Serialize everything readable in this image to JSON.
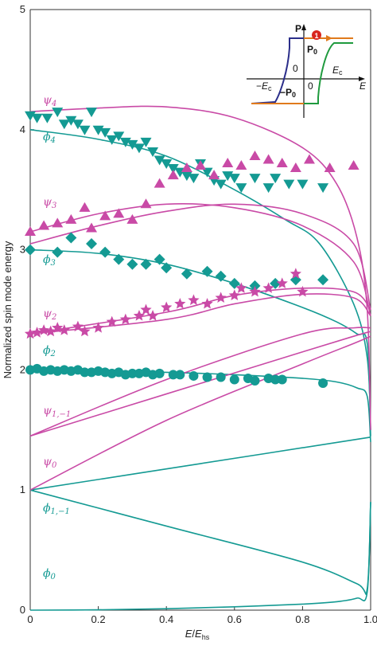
{
  "chart_data": {
    "type": "line",
    "xlabel": "E/E_hs",
    "ylabel": "Normalized spin mode energy",
    "xlim": [
      0,
      1.0
    ],
    "ylim": [
      0,
      5
    ],
    "x_ticks": [
      "0",
      "0.2",
      "0.4",
      "0.6",
      "0.8",
      "1.0"
    ],
    "y_ticks": [
      "0",
      "1",
      "2",
      "3",
      "4",
      "5"
    ],
    "grid": false,
    "colors": {
      "phi": "#149a93",
      "psi": "#c94aa6",
      "axis": "#333333"
    },
    "mode_labels": {
      "psi_4": "ψ4",
      "phi_4": "φ4",
      "psi_3": "ψ3",
      "phi_3": "φ3",
      "psi_2": "ψ2",
      "phi_2": "φ2",
      "psi_1m1": "ψ1,−1",
      "psi_0": "ψ0",
      "phi_1m1": "φ1,−1",
      "phi_0": "φ0"
    },
    "curves": [
      {
        "family": "phi",
        "mode": "phi_0",
        "points": [
          [
            0,
            0
          ],
          [
            0.2,
            0.003
          ],
          [
            0.4,
            0.012
          ],
          [
            0.6,
            0.028
          ],
          [
            0.8,
            0.05
          ],
          [
            0.9,
            0.07
          ],
          [
            0.96,
            0.1
          ],
          [
            0.99,
            0.15
          ],
          [
            1.0,
            0.9
          ]
        ]
      },
      {
        "family": "phi",
        "mode": "phi_1m1_upper",
        "points": [
          [
            0,
            1.0
          ],
          [
            0.5,
            1.22
          ],
          [
            1.0,
            1.44
          ]
        ]
      },
      {
        "family": "phi",
        "mode": "phi_1m1_lower",
        "points": [
          [
            0,
            1.0
          ],
          [
            0.4,
            0.7
          ],
          [
            0.8,
            0.4
          ],
          [
            0.96,
            0.22
          ],
          [
            0.99,
            0.18
          ],
          [
            1.0,
            0.9
          ]
        ]
      },
      {
        "family": "phi",
        "mode": "phi_2",
        "points": [
          [
            0,
            2.0
          ],
          [
            0.4,
            1.98
          ],
          [
            0.6,
            1.96
          ],
          [
            0.8,
            1.93
          ],
          [
            0.9,
            1.9
          ],
          [
            0.96,
            1.85
          ],
          [
            0.99,
            1.78
          ],
          [
            1.0,
            1.4
          ]
        ]
      },
      {
        "family": "phi",
        "mode": "phi_3",
        "points": [
          [
            0,
            3.0
          ],
          [
            0.2,
            2.97
          ],
          [
            0.4,
            2.88
          ],
          [
            0.6,
            2.72
          ],
          [
            0.8,
            2.52
          ],
          [
            0.9,
            2.4
          ],
          [
            0.96,
            2.3
          ],
          [
            0.99,
            2.22
          ],
          [
            1.0,
            1.45
          ]
        ]
      },
      {
        "family": "phi",
        "mode": "phi_4",
        "points": [
          [
            0,
            4.0
          ],
          [
            0.2,
            3.92
          ],
          [
            0.4,
            3.78
          ],
          [
            0.6,
            3.5
          ],
          [
            0.75,
            3.25
          ],
          [
            0.85,
            3.05
          ],
          [
            0.95,
            2.55
          ],
          [
            0.99,
            2.1
          ],
          [
            1.0,
            1.5
          ]
        ]
      },
      {
        "family": "psi",
        "mode": "psi_0",
        "points": [
          [
            0,
            1.0
          ],
          [
            0.4,
            1.58
          ],
          [
            0.8,
            2.05
          ],
          [
            0.95,
            2.22
          ],
          [
            1.0,
            2.28
          ]
        ]
      },
      {
        "family": "psi",
        "mode": "psi_1m1_a",
        "points": [
          [
            0,
            1.45
          ],
          [
            0.4,
            1.8
          ],
          [
            0.8,
            2.15
          ],
          [
            0.95,
            2.28
          ],
          [
            1.0,
            2.32
          ]
        ]
      },
      {
        "family": "psi",
        "mode": "psi_1m1_b",
        "points": [
          [
            0,
            1.45
          ],
          [
            0.4,
            1.92
          ],
          [
            0.8,
            2.3
          ],
          [
            0.95,
            2.35
          ],
          [
            1.0,
            2.35
          ]
        ]
      },
      {
        "family": "psi",
        "mode": "psi_2a",
        "points": [
          [
            0,
            2.3
          ],
          [
            0.4,
            2.42
          ],
          [
            0.6,
            2.55
          ],
          [
            0.8,
            2.63
          ],
          [
            0.95,
            2.6
          ],
          [
            1.0,
            2.45
          ]
        ]
      },
      {
        "family": "psi",
        "mode": "psi_2b",
        "points": [
          [
            0,
            2.3
          ],
          [
            0.4,
            2.48
          ],
          [
            0.6,
            2.62
          ],
          [
            0.8,
            2.68
          ],
          [
            0.95,
            2.65
          ],
          [
            1.0,
            2.5
          ]
        ]
      },
      {
        "family": "psi",
        "mode": "psi_3a",
        "points": [
          [
            0,
            3.05
          ],
          [
            0.2,
            3.2
          ],
          [
            0.4,
            3.32
          ],
          [
            0.6,
            3.38
          ],
          [
            0.8,
            3.3
          ],
          [
            0.95,
            3.05
          ],
          [
            1.0,
            2.5
          ]
        ]
      },
      {
        "family": "psi",
        "mode": "psi_3b",
        "points": [
          [
            0,
            3.15
          ],
          [
            0.2,
            3.3
          ],
          [
            0.4,
            3.38
          ],
          [
            0.6,
            3.35
          ],
          [
            0.8,
            3.2
          ],
          [
            0.95,
            2.9
          ],
          [
            1.0,
            2.45
          ]
        ]
      },
      {
        "family": "psi",
        "mode": "psi_4",
        "points": [
          [
            0,
            4.15
          ],
          [
            0.2,
            4.18
          ],
          [
            0.4,
            4.19
          ],
          [
            0.6,
            4.1
          ],
          [
            0.8,
            3.85
          ],
          [
            0.9,
            3.55
          ],
          [
            0.96,
            3.1
          ],
          [
            0.99,
            2.5
          ],
          [
            1.0,
            1.5
          ]
        ]
      }
    ],
    "scatter": [
      {
        "family": "phi",
        "marker": "circle",
        "points": [
          [
            0,
            2.0
          ],
          [
            0.02,
            2.01
          ],
          [
            0.04,
            1.99
          ],
          [
            0.06,
            2.0
          ],
          [
            0.08,
            1.99
          ],
          [
            0.1,
            2.0
          ],
          [
            0.12,
            1.99
          ],
          [
            0.14,
            2.0
          ],
          [
            0.16,
            1.98
          ],
          [
            0.18,
            1.98
          ],
          [
            0.2,
            1.99
          ],
          [
            0.22,
            1.98
          ],
          [
            0.24,
            1.97
          ],
          [
            0.26,
            1.98
          ],
          [
            0.28,
            1.96
          ],
          [
            0.3,
            1.97
          ],
          [
            0.32,
            1.97
          ],
          [
            0.34,
            1.98
          ],
          [
            0.36,
            1.96
          ],
          [
            0.38,
            1.97
          ],
          [
            0.42,
            1.96
          ],
          [
            0.44,
            1.96
          ],
          [
            0.48,
            1.95
          ],
          [
            0.52,
            1.94
          ],
          [
            0.56,
            1.94
          ],
          [
            0.6,
            1.92
          ],
          [
            0.64,
            1.93
          ],
          [
            0.66,
            1.91
          ],
          [
            0.7,
            1.93
          ],
          [
            0.72,
            1.92
          ],
          [
            0.74,
            1.92
          ],
          [
            0.86,
            1.89
          ]
        ]
      },
      {
        "family": "phi",
        "marker": "diamond",
        "points": [
          [
            0,
            3.0
          ],
          [
            0.08,
            2.98
          ],
          [
            0.12,
            3.1
          ],
          [
            0.18,
            3.05
          ],
          [
            0.22,
            2.98
          ],
          [
            0.26,
            2.92
          ],
          [
            0.3,
            2.88
          ],
          [
            0.34,
            2.88
          ],
          [
            0.38,
            2.92
          ],
          [
            0.4,
            2.85
          ],
          [
            0.46,
            2.8
          ],
          [
            0.52,
            2.82
          ],
          [
            0.56,
            2.78
          ],
          [
            0.6,
            2.72
          ],
          [
            0.66,
            2.7
          ],
          [
            0.72,
            2.72
          ],
          [
            0.78,
            2.75
          ],
          [
            0.86,
            2.75
          ]
        ]
      },
      {
        "family": "phi",
        "marker": "triangle-down",
        "points": [
          [
            0,
            4.12
          ],
          [
            0.02,
            4.1
          ],
          [
            0.05,
            4.1
          ],
          [
            0.08,
            4.15
          ],
          [
            0.1,
            4.05
          ],
          [
            0.12,
            4.08
          ],
          [
            0.14,
            4.05
          ],
          [
            0.16,
            4.0
          ],
          [
            0.18,
            4.15
          ],
          [
            0.2,
            4.0
          ],
          [
            0.22,
            3.98
          ],
          [
            0.24,
            3.92
          ],
          [
            0.26,
            3.95
          ],
          [
            0.28,
            3.9
          ],
          [
            0.3,
            3.88
          ],
          [
            0.32,
            3.85
          ],
          [
            0.34,
            3.9
          ],
          [
            0.36,
            3.82
          ],
          [
            0.38,
            3.75
          ],
          [
            0.4,
            3.72
          ],
          [
            0.42,
            3.68
          ],
          [
            0.44,
            3.65
          ],
          [
            0.46,
            3.62
          ],
          [
            0.48,
            3.6
          ],
          [
            0.5,
            3.72
          ],
          [
            0.52,
            3.65
          ],
          [
            0.54,
            3.58
          ],
          [
            0.56,
            3.55
          ],
          [
            0.58,
            3.62
          ],
          [
            0.6,
            3.6
          ],
          [
            0.62,
            3.52
          ],
          [
            0.66,
            3.6
          ],
          [
            0.7,
            3.52
          ],
          [
            0.72,
            3.6
          ],
          [
            0.76,
            3.55
          ],
          [
            0.8,
            3.55
          ],
          [
            0.86,
            3.52
          ]
        ]
      },
      {
        "family": "psi",
        "marker": "star",
        "points": [
          [
            0,
            2.3
          ],
          [
            0.02,
            2.31
          ],
          [
            0.04,
            2.33
          ],
          [
            0.06,
            2.32
          ],
          [
            0.08,
            2.35
          ],
          [
            0.1,
            2.33
          ],
          [
            0.14,
            2.36
          ],
          [
            0.16,
            2.32
          ],
          [
            0.2,
            2.35
          ],
          [
            0.24,
            2.4
          ],
          [
            0.28,
            2.42
          ],
          [
            0.32,
            2.45
          ],
          [
            0.34,
            2.5
          ],
          [
            0.36,
            2.45
          ],
          [
            0.4,
            2.52
          ],
          [
            0.44,
            2.55
          ],
          [
            0.48,
            2.58
          ],
          [
            0.52,
            2.55
          ],
          [
            0.56,
            2.6
          ],
          [
            0.6,
            2.62
          ],
          [
            0.62,
            2.68
          ],
          [
            0.66,
            2.65
          ],
          [
            0.7,
            2.68
          ],
          [
            0.74,
            2.72
          ],
          [
            0.78,
            2.8
          ],
          [
            0.8,
            2.65
          ]
        ]
      },
      {
        "family": "psi",
        "marker": "triangle-up",
        "points": [
          [
            0,
            3.15
          ],
          [
            0.04,
            3.2
          ],
          [
            0.08,
            3.22
          ],
          [
            0.12,
            3.25
          ],
          [
            0.16,
            3.35
          ],
          [
            0.18,
            3.18
          ],
          [
            0.22,
            3.28
          ],
          [
            0.26,
            3.3
          ],
          [
            0.3,
            3.25
          ],
          [
            0.34,
            3.38
          ],
          [
            0.38,
            3.55
          ],
          [
            0.42,
            3.62
          ],
          [
            0.46,
            3.68
          ],
          [
            0.5,
            3.7
          ],
          [
            0.54,
            3.62
          ],
          [
            0.58,
            3.72
          ],
          [
            0.62,
            3.7
          ],
          [
            0.66,
            3.78
          ],
          [
            0.7,
            3.75
          ],
          [
            0.74,
            3.72
          ],
          [
            0.78,
            3.68
          ],
          [
            0.82,
            3.75
          ],
          [
            0.88,
            3.68
          ],
          [
            0.95,
            3.7
          ]
        ]
      }
    ],
    "inset": {
      "p_label": "P",
      "e_label": "E",
      "p0_top": "P0",
      "p0_bottom": "−P0",
      "ec_pos": "Ec",
      "ec_neg": "−Ec",
      "zero_left": "0",
      "zero_right": "0",
      "state_marker": "1",
      "colors": {
        "branch_down": "#2b2e8a",
        "branch_up": "#1f9a3e",
        "saturation": "#e07a1c",
        "marker": "#d8261f"
      }
    }
  }
}
